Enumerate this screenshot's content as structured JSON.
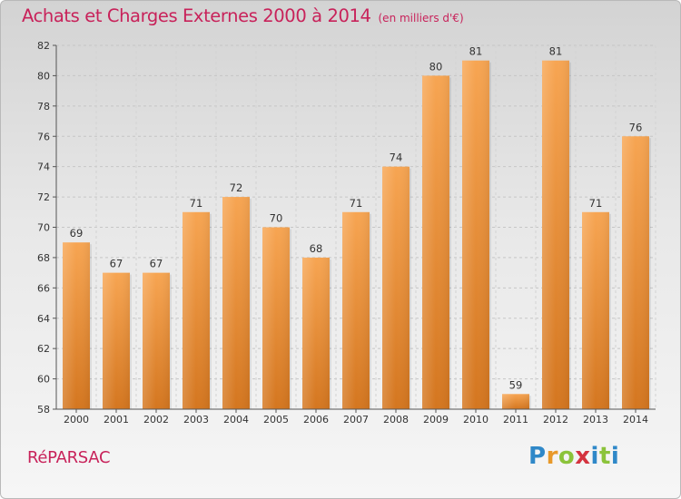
{
  "header": {
    "title": "Achats et Charges Externes 2000 à 2014",
    "subtitle": "(en milliers d'€)"
  },
  "footer": {
    "commune": "RéPARSAC",
    "logo": "Proxiti"
  },
  "colors": {
    "title": "#c8225a",
    "bar_light": "#f7a552",
    "bar_dark": "#d4761f"
  },
  "chart_data": {
    "type": "bar",
    "categories": [
      "2000",
      "2001",
      "2002",
      "2003",
      "2004",
      "2005",
      "2006",
      "2007",
      "2008",
      "2009",
      "2010",
      "2011",
      "2012",
      "2013",
      "2014"
    ],
    "values": [
      69,
      67,
      67,
      71,
      72,
      70,
      68,
      71,
      74,
      80,
      81,
      59,
      81,
      71,
      76
    ],
    "ylim": [
      58,
      82
    ],
    "yticks": [
      58,
      60,
      62,
      64,
      66,
      68,
      70,
      72,
      74,
      76,
      78,
      80,
      82
    ],
    "grid": true,
    "data_labels": true
  }
}
